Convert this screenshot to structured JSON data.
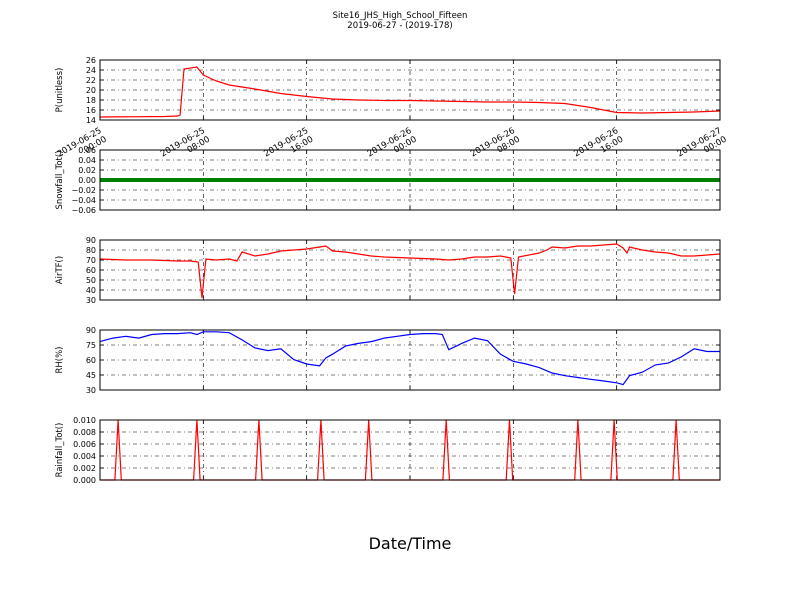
{
  "figure": {
    "title": "Site16_JHS_High_School_Fifteen",
    "subtitle": "2019-06-27 - (2019-178)",
    "xlabel": "Date/Time"
  },
  "chart_data": [
    {
      "type": "line",
      "ylabel": "P(unitless)",
      "ylim": [
        14,
        26
      ],
      "yticks": [
        "14",
        "16",
        "18",
        "20",
        "22",
        "24",
        "26"
      ],
      "xticks": [
        "2019-06-25\n00:00",
        "2019-06-25\n08:00",
        "2019-06-25\n16:00",
        "2019-06-26\n00:00",
        "2019-06-26\n08:00",
        "2019-06-26\n16:00",
        "2019-06-27\n00:00"
      ],
      "xlim_hours": [
        0,
        48
      ],
      "grid": true,
      "color": "#ff0000",
      "series": [
        {
          "x": [
            0,
            5,
            6,
            6.2,
            6.5,
            7.5,
            8,
            9,
            10,
            12,
            14,
            16,
            18,
            20,
            22,
            24,
            26,
            28,
            30,
            32,
            34,
            36,
            38,
            40,
            42,
            44,
            46,
            48
          ],
          "y": [
            14.6,
            14.7,
            14.8,
            15,
            24.2,
            24.6,
            23,
            21.8,
            21,
            20.2,
            19.3,
            18.7,
            18.2,
            18,
            17.9,
            17.9,
            17.8,
            17.7,
            17.6,
            17.6,
            17.5,
            17.3,
            16.5,
            15.5,
            15.4,
            15.5,
            15.6,
            15.8
          ]
        }
      ]
    },
    {
      "type": "line",
      "ylabel": "Snowfall_Tot()",
      "ylim": [
        -0.06,
        0.06
      ],
      "yticks": [
        "−0.06",
        "−0.04",
        "−0.02",
        "0.00",
        "0.02",
        "0.04",
        "0.06"
      ],
      "xlim_hours": [
        0,
        48
      ],
      "grid": true,
      "color": "#008000",
      "series": [
        {
          "x": [
            0,
            48
          ],
          "y": [
            0,
            0
          ]
        }
      ]
    },
    {
      "type": "line",
      "ylabel": "AirTF()",
      "ylim": [
        30,
        90
      ],
      "yticks": [
        "30",
        "40",
        "50",
        "60",
        "70",
        "80",
        "90"
      ],
      "xlim_hours": [
        0,
        48
      ],
      "grid": true,
      "color": "#ff0000",
      "series": [
        {
          "x": [
            0,
            2,
            4,
            6,
            7,
            7.6,
            7.9,
            8.2,
            9,
            10,
            10.6,
            11,
            12,
            13,
            14,
            15,
            16,
            17,
            17.5,
            18,
            19,
            20,
            21,
            22,
            24,
            26,
            27,
            28,
            29,
            30,
            31,
            31.8,
            32.1,
            32.4,
            34,
            34.6,
            35,
            36,
            37,
            38,
            39,
            40,
            40.5,
            40.8,
            41,
            41.3,
            42,
            43,
            44,
            45,
            46,
            47,
            48
          ],
          "y": [
            71,
            70,
            70,
            69,
            69,
            68,
            32,
            71,
            70,
            71,
            69,
            78,
            74,
            76,
            79,
            80,
            81,
            83,
            84,
            79,
            78,
            76,
            74,
            73,
            72,
            71,
            70,
            71,
            73,
            73,
            74,
            72,
            36,
            73,
            77,
            80,
            83,
            82,
            84,
            84,
            85,
            86,
            82,
            77,
            83,
            82,
            80,
            78,
            77,
            74,
            74,
            75,
            76
          ]
        }
      ]
    },
    {
      "type": "line",
      "ylabel": "RH(%)",
      "ylim": [
        30,
        97
      ],
      "yticks": [
        "30",
        "45",
        "60",
        "75",
        "90"
      ],
      "xlim_hours": [
        0,
        48
      ],
      "grid": true,
      "color": "#0000ff",
      "series": [
        {
          "x": [
            0,
            1,
            2,
            3,
            4,
            5,
            6,
            7,
            7.5,
            8,
            9,
            10,
            11,
            12,
            13,
            14,
            15,
            16,
            17,
            17.5,
            18,
            19,
            20,
            21,
            22,
            23,
            24,
            25,
            26,
            26.5,
            27,
            28,
            29,
            30,
            31,
            32,
            33,
            34,
            35,
            36,
            37,
            38,
            39,
            40,
            40.5,
            41,
            42,
            43,
            44,
            45,
            46,
            47,
            48
          ],
          "y": [
            84,
            88,
            90,
            88,
            92,
            93,
            93,
            94,
            92,
            95,
            95,
            94,
            86,
            77,
            74,
            76,
            64,
            59,
            57,
            66,
            70,
            79,
            82,
            84,
            88,
            90,
            92,
            93,
            93,
            92,
            75,
            82,
            88,
            85,
            70,
            62,
            59,
            55,
            49,
            46,
            44,
            42,
            40,
            38,
            36,
            46,
            50,
            58,
            60,
            67,
            76,
            73,
            73
          ]
        }
      ]
    },
    {
      "type": "line",
      "ylabel": "Rainfall_Tot()",
      "ylim": [
        0,
        0.01
      ],
      "yticks": [
        "0.000",
        "0.002",
        "0.004",
        "0.006",
        "0.008",
        "0.010"
      ],
      "xlim_hours": [
        0,
        48
      ],
      "grid": true,
      "color": "#ff0000",
      "spike_hours": [
        1.4,
        7.5,
        12.3,
        17.1,
        20.8,
        26.8,
        31.7,
        37.0,
        39.8,
        44.6
      ],
      "spike_value": 0.01
    }
  ]
}
